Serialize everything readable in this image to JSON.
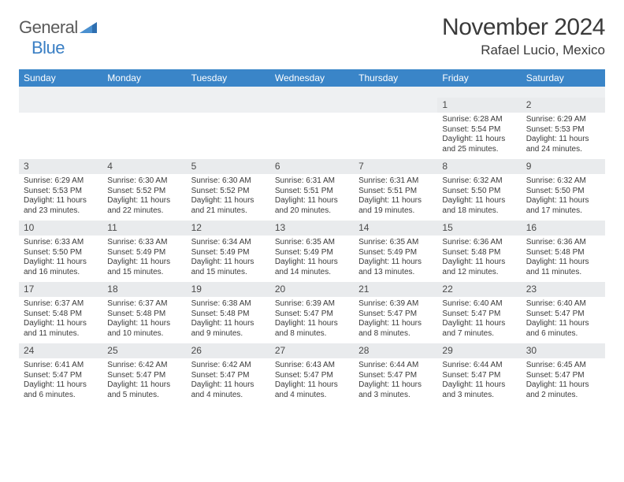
{
  "logo": {
    "word1": "General",
    "word2": "Blue"
  },
  "title": "November 2024",
  "location": "Rafael Lucio, Mexico",
  "colors": {
    "accent": "#3a85c8",
    "header_bg": "#3a85c8",
    "header_fg": "#ffffff",
    "daynum_bg": "#e9ebed",
    "spacer_bg": "#eef0f2",
    "text": "#3a3a3a",
    "logo_blue": "#3a7fc4",
    "logo_gray": "#5a5a5a"
  },
  "weekdays": [
    "Sunday",
    "Monday",
    "Tuesday",
    "Wednesday",
    "Thursday",
    "Friday",
    "Saturday"
  ],
  "weeks": [
    [
      {
        "day": "",
        "lines": []
      },
      {
        "day": "",
        "lines": []
      },
      {
        "day": "",
        "lines": []
      },
      {
        "day": "",
        "lines": []
      },
      {
        "day": "",
        "lines": []
      },
      {
        "day": "1",
        "lines": [
          "Sunrise: 6:28 AM",
          "Sunset: 5:54 PM",
          "Daylight: 11 hours and 25 minutes."
        ]
      },
      {
        "day": "2",
        "lines": [
          "Sunrise: 6:29 AM",
          "Sunset: 5:53 PM",
          "Daylight: 11 hours and 24 minutes."
        ]
      }
    ],
    [
      {
        "day": "3",
        "lines": [
          "Sunrise: 6:29 AM",
          "Sunset: 5:53 PM",
          "Daylight: 11 hours and 23 minutes."
        ]
      },
      {
        "day": "4",
        "lines": [
          "Sunrise: 6:30 AM",
          "Sunset: 5:52 PM",
          "Daylight: 11 hours and 22 minutes."
        ]
      },
      {
        "day": "5",
        "lines": [
          "Sunrise: 6:30 AM",
          "Sunset: 5:52 PM",
          "Daylight: 11 hours and 21 minutes."
        ]
      },
      {
        "day": "6",
        "lines": [
          "Sunrise: 6:31 AM",
          "Sunset: 5:51 PM",
          "Daylight: 11 hours and 20 minutes."
        ]
      },
      {
        "day": "7",
        "lines": [
          "Sunrise: 6:31 AM",
          "Sunset: 5:51 PM",
          "Daylight: 11 hours and 19 minutes."
        ]
      },
      {
        "day": "8",
        "lines": [
          "Sunrise: 6:32 AM",
          "Sunset: 5:50 PM",
          "Daylight: 11 hours and 18 minutes."
        ]
      },
      {
        "day": "9",
        "lines": [
          "Sunrise: 6:32 AM",
          "Sunset: 5:50 PM",
          "Daylight: 11 hours and 17 minutes."
        ]
      }
    ],
    [
      {
        "day": "10",
        "lines": [
          "Sunrise: 6:33 AM",
          "Sunset: 5:50 PM",
          "Daylight: 11 hours and 16 minutes."
        ]
      },
      {
        "day": "11",
        "lines": [
          "Sunrise: 6:33 AM",
          "Sunset: 5:49 PM",
          "Daylight: 11 hours and 15 minutes."
        ]
      },
      {
        "day": "12",
        "lines": [
          "Sunrise: 6:34 AM",
          "Sunset: 5:49 PM",
          "Daylight: 11 hours and 15 minutes."
        ]
      },
      {
        "day": "13",
        "lines": [
          "Sunrise: 6:35 AM",
          "Sunset: 5:49 PM",
          "Daylight: 11 hours and 14 minutes."
        ]
      },
      {
        "day": "14",
        "lines": [
          "Sunrise: 6:35 AM",
          "Sunset: 5:49 PM",
          "Daylight: 11 hours and 13 minutes."
        ]
      },
      {
        "day": "15",
        "lines": [
          "Sunrise: 6:36 AM",
          "Sunset: 5:48 PM",
          "Daylight: 11 hours and 12 minutes."
        ]
      },
      {
        "day": "16",
        "lines": [
          "Sunrise: 6:36 AM",
          "Sunset: 5:48 PM",
          "Daylight: 11 hours and 11 minutes."
        ]
      }
    ],
    [
      {
        "day": "17",
        "lines": [
          "Sunrise: 6:37 AM",
          "Sunset: 5:48 PM",
          "Daylight: 11 hours and 11 minutes."
        ]
      },
      {
        "day": "18",
        "lines": [
          "Sunrise: 6:37 AM",
          "Sunset: 5:48 PM",
          "Daylight: 11 hours and 10 minutes."
        ]
      },
      {
        "day": "19",
        "lines": [
          "Sunrise: 6:38 AM",
          "Sunset: 5:48 PM",
          "Daylight: 11 hours and 9 minutes."
        ]
      },
      {
        "day": "20",
        "lines": [
          "Sunrise: 6:39 AM",
          "Sunset: 5:47 PM",
          "Daylight: 11 hours and 8 minutes."
        ]
      },
      {
        "day": "21",
        "lines": [
          "Sunrise: 6:39 AM",
          "Sunset: 5:47 PM",
          "Daylight: 11 hours and 8 minutes."
        ]
      },
      {
        "day": "22",
        "lines": [
          "Sunrise: 6:40 AM",
          "Sunset: 5:47 PM",
          "Daylight: 11 hours and 7 minutes."
        ]
      },
      {
        "day": "23",
        "lines": [
          "Sunrise: 6:40 AM",
          "Sunset: 5:47 PM",
          "Daylight: 11 hours and 6 minutes."
        ]
      }
    ],
    [
      {
        "day": "24",
        "lines": [
          "Sunrise: 6:41 AM",
          "Sunset: 5:47 PM",
          "Daylight: 11 hours and 6 minutes."
        ]
      },
      {
        "day": "25",
        "lines": [
          "Sunrise: 6:42 AM",
          "Sunset: 5:47 PM",
          "Daylight: 11 hours and 5 minutes."
        ]
      },
      {
        "day": "26",
        "lines": [
          "Sunrise: 6:42 AM",
          "Sunset: 5:47 PM",
          "Daylight: 11 hours and 4 minutes."
        ]
      },
      {
        "day": "27",
        "lines": [
          "Sunrise: 6:43 AM",
          "Sunset: 5:47 PM",
          "Daylight: 11 hours and 4 minutes."
        ]
      },
      {
        "day": "28",
        "lines": [
          "Sunrise: 6:44 AM",
          "Sunset: 5:47 PM",
          "Daylight: 11 hours and 3 minutes."
        ]
      },
      {
        "day": "29",
        "lines": [
          "Sunrise: 6:44 AM",
          "Sunset: 5:47 PM",
          "Daylight: 11 hours and 3 minutes."
        ]
      },
      {
        "day": "30",
        "lines": [
          "Sunrise: 6:45 AM",
          "Sunset: 5:47 PM",
          "Daylight: 11 hours and 2 minutes."
        ]
      }
    ]
  ]
}
